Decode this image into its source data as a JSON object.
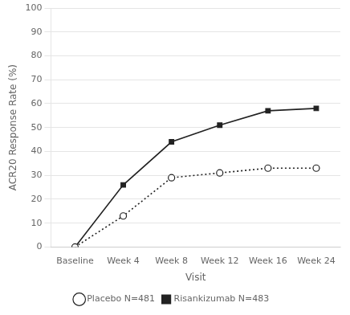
{
  "chart_data": {
    "type": "line",
    "xlabel": "Visit",
    "ylabel": "ACR20 Response Rate (%)",
    "categories": [
      "Baseline",
      "Week 4",
      "Week 8",
      "Week 12",
      "Week 16",
      "Week 24"
    ],
    "series": [
      {
        "name": "Placebo N=481",
        "color": "#222222",
        "values": [
          0,
          13,
          29,
          31,
          33,
          33
        ],
        "marker": "circle",
        "line_style": "dotted"
      },
      {
        "name": "Risankizumab N=483",
        "color": "#222222",
        "values": [
          0,
          26,
          44,
          51,
          57,
          58
        ],
        "marker": "square",
        "line_style": "solid"
      }
    ],
    "ylim": [
      0,
      100
    ],
    "yticks": [
      0,
      10,
      20,
      30,
      40,
      50,
      60,
      70,
      80,
      90,
      100
    ],
    "grid": "y",
    "legend": "bottom"
  }
}
